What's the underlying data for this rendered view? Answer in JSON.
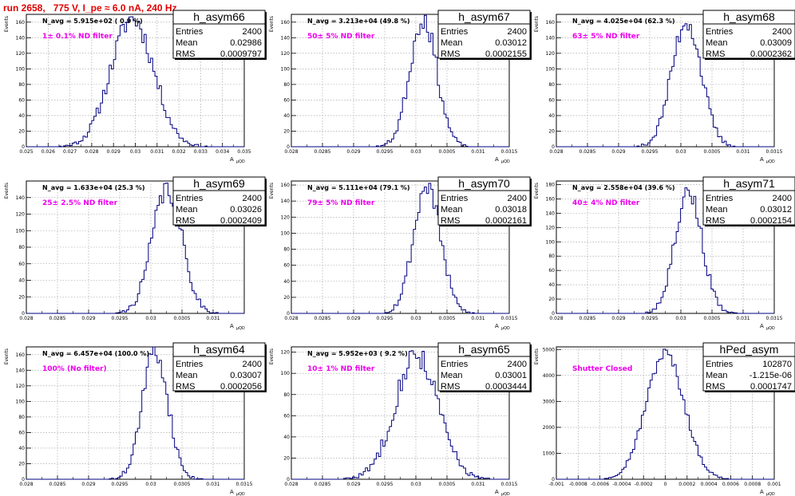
{
  "header": {
    "title": "run 2658,   775 V, I_pe ≈ 6.0 nA, 240 Hz"
  },
  "common": {
    "ylabel": "Events",
    "xlabel": "A",
    "xlabel_sub": "μQD",
    "line_color": "#000080",
    "filter_color": "#ee00ee"
  },
  "stats_labels": {
    "entries": "Entries",
    "mean": "Mean",
    "rms": "RMS"
  },
  "chart_data": [
    {
      "type": "bar",
      "name": "h_asym66",
      "navg": "N_avg = 5.915e+02 ( 0.9 %)",
      "filter": "1± 0.1% ND filter",
      "entries": "2400",
      "mean": "0.02986",
      "rms": "0.0009797",
      "xlim": [
        0.025,
        0.035
      ],
      "ylim": [
        0,
        170
      ],
      "xticks": [
        0.025,
        0.026,
        0.027,
        0.028,
        0.029,
        0.03,
        0.031,
        0.032,
        0.033,
        0.034,
        0.035
      ],
      "xtick_labels": [
        "0.025",
        "0.026",
        "0.027",
        "0.028",
        "0.029",
        "0.03",
        "0.031",
        "0.032",
        "0.033",
        "0.034",
        "0.035"
      ],
      "yticks": [
        0,
        20,
        40,
        60,
        80,
        100,
        120,
        140,
        160
      ],
      "ytick_labels": [
        "0",
        "20",
        "40",
        "60",
        "80",
        "100",
        "120",
        "140",
        "160"
      ],
      "mu": 0.02986,
      "sigma": 0.0009797,
      "nbins": 100,
      "peak": 165,
      "seed": 11
    },
    {
      "type": "bar",
      "name": "h_asym67",
      "navg": "N_avg = 3.213e+04 (49.8 %)",
      "filter": "50± 5% ND filter",
      "entries": "2400",
      "mean": "0.03012",
      "rms": "0.0002155",
      "xlim": [
        0.028,
        0.0315
      ],
      "ylim": [
        0,
        170
      ],
      "xticks": [
        0.028,
        0.0285,
        0.029,
        0.0295,
        0.03,
        0.0305,
        0.031,
        0.0315
      ],
      "xtick_labels": [
        "0.028",
        "0.0285",
        "0.029",
        "0.0295",
        "0.03",
        "0.0305",
        "0.031",
        "0.0315"
      ],
      "yticks": [
        0,
        20,
        40,
        60,
        80,
        100,
        120,
        140,
        160
      ],
      "ytick_labels": [
        "0",
        "20",
        "40",
        "60",
        "80",
        "100",
        "120",
        "140",
        "160"
      ],
      "mu": 0.03012,
      "sigma": 0.0002155,
      "nbins": 100,
      "peak": 165,
      "seed": 23
    },
    {
      "type": "bar",
      "name": "h_asym68",
      "navg": "N_avg = 4.025e+04 (62.3 %)",
      "filter": "63± 5% ND filter",
      "entries": "2400",
      "mean": "0.03009",
      "rms": "0.0002362",
      "xlim": [
        0.028,
        0.0315
      ],
      "ylim": [
        0,
        170
      ],
      "xticks": [
        0.028,
        0.0285,
        0.029,
        0.0295,
        0.03,
        0.0305,
        0.031,
        0.0315
      ],
      "xtick_labels": [
        "0.028",
        "0.0285",
        "0.029",
        "0.0295",
        "0.03",
        "0.0305",
        "0.031",
        "0.0315"
      ],
      "yticks": [
        0,
        20,
        40,
        60,
        80,
        100,
        120,
        140,
        160
      ],
      "ytick_labels": [
        "0",
        "20",
        "40",
        "60",
        "80",
        "100",
        "120",
        "140",
        "160"
      ],
      "mu": 0.03009,
      "sigma": 0.0002362,
      "nbins": 100,
      "peak": 162,
      "seed": 37
    },
    {
      "type": "bar",
      "name": "h_asym69",
      "navg": "N_avg = 1.633e+04 (25.3 %)",
      "filter": "25± 2.5% ND filter",
      "entries": "2400",
      "mean": "0.03026",
      "rms": "0.0002409",
      "xlim": [
        0.028,
        0.0315
      ],
      "ylim": [
        0,
        160
      ],
      "xticks": [
        0.028,
        0.0285,
        0.029,
        0.0295,
        0.03,
        0.0305,
        0.031,
        0.0315
      ],
      "xtick_labels": [
        "0.028",
        "0.0285",
        "0.029",
        "0.0295",
        "0.03",
        "0.0305",
        "0.031",
        ""
      ],
      "yticks": [
        0,
        20,
        40,
        60,
        80,
        100,
        120,
        140
      ],
      "ytick_labels": [
        "0",
        "20",
        "40",
        "60",
        "80",
        "100",
        "120",
        "140"
      ],
      "mu": 0.03026,
      "sigma": 0.0002409,
      "nbins": 100,
      "peak": 150,
      "seed": 41
    },
    {
      "type": "bar",
      "name": "h_asym70",
      "navg": "N_avg = 5.111e+04 (79.1 %)",
      "filter": "79± 5% ND filter",
      "entries": "2400",
      "mean": "0.03018",
      "rms": "0.0002161",
      "xlim": [
        0.028,
        0.0315
      ],
      "ylim": [
        0,
        165
      ],
      "xticks": [
        0.028,
        0.0285,
        0.029,
        0.0295,
        0.03,
        0.0305,
        0.031,
        0.0315
      ],
      "xtick_labels": [
        "0.028",
        "0.0285",
        "0.029",
        "0.0295",
        "0.03",
        "0.0305",
        "0.031",
        "0.0315"
      ],
      "yticks": [
        0,
        20,
        40,
        60,
        80,
        100,
        120,
        140,
        160
      ],
      "ytick_labels": [
        "0",
        "20",
        "40",
        "60",
        "80",
        "100",
        "120",
        "140",
        "160"
      ],
      "mu": 0.03018,
      "sigma": 0.0002161,
      "nbins": 100,
      "peak": 160,
      "seed": 53
    },
    {
      "type": "bar",
      "name": "h_asym71",
      "navg": "N_avg = 2.558e+04 (39.6 %)",
      "filter": "40± 4% ND filter",
      "entries": "2400",
      "mean": "0.03012",
      "rms": "0.0002154",
      "xlim": [
        0.028,
        0.0315
      ],
      "ylim": [
        0,
        185
      ],
      "xticks": [
        0.028,
        0.0285,
        0.029,
        0.0295,
        0.03,
        0.0305,
        0.031,
        0.0315
      ],
      "xtick_labels": [
        "0.028",
        "0.0285",
        "0.029",
        "0.0295",
        "0.03",
        "0.0305",
        "0.031",
        "0.0315"
      ],
      "yticks": [
        0,
        20,
        40,
        60,
        80,
        100,
        120,
        140,
        160,
        180
      ],
      "ytick_labels": [
        "0",
        "20",
        "40",
        "60",
        "80",
        "100",
        "120",
        "140",
        "160",
        "180"
      ],
      "mu": 0.03012,
      "sigma": 0.0002154,
      "nbins": 100,
      "peak": 172,
      "seed": 67
    },
    {
      "type": "bar",
      "name": "h_asym64",
      "navg": "N_avg = 6.457e+04 (100.0 %)",
      "filter": "100% (No filter)",
      "entries": "2400",
      "mean": "0.03007",
      "rms": "0.0002056",
      "xlim": [
        0.028,
        0.0315
      ],
      "ylim": [
        0,
        170
      ],
      "xticks": [
        0.028,
        0.0285,
        0.029,
        0.0295,
        0.03,
        0.0305,
        0.031,
        0.0315
      ],
      "xtick_labels": [
        "0.028",
        "0.0285",
        "0.029",
        "0.0295",
        "0.03",
        "0.0305",
        "0.031",
        "0.0315"
      ],
      "yticks": [
        0,
        20,
        40,
        60,
        80,
        100,
        120,
        140,
        160
      ],
      "ytick_labels": [
        "0",
        "20",
        "40",
        "60",
        "80",
        "100",
        "120",
        "140",
        "160"
      ],
      "mu": 0.03007,
      "sigma": 0.0002056,
      "nbins": 100,
      "peak": 165,
      "seed": 71
    },
    {
      "type": "bar",
      "name": "h_asym65",
      "navg": "N_avg = 5.952e+03 ( 9.2 %)",
      "filter": "10± 1% ND filter",
      "entries": "2400",
      "mean": "0.03001",
      "rms": "0.0003444",
      "xlim": [
        0.028,
        0.0315
      ],
      "ylim": [
        0,
        125
      ],
      "xticks": [
        0.028,
        0.0285,
        0.029,
        0.0295,
        0.03,
        0.0305,
        0.031,
        0.0315
      ],
      "xtick_labels": [
        "0.028",
        "0.0285",
        "0.029",
        "0.0295",
        "0.03",
        "0.0305",
        "0.031",
        "0.0315"
      ],
      "yticks": [
        0,
        20,
        40,
        60,
        80,
        100,
        120
      ],
      "ytick_labels": [
        "0",
        "20",
        "40",
        "60",
        "80",
        "100",
        "120"
      ],
      "mu": 0.03001,
      "sigma": 0.0003444,
      "nbins": 100,
      "peak": 118,
      "seed": 83
    },
    {
      "type": "bar",
      "name": "hPed_asym",
      "navg": "",
      "filter": "Shutter Closed",
      "entries": "102870",
      "mean": "-1.215e-06",
      "rms": "0.0001747",
      "xlim": [
        -0.001,
        0.001
      ],
      "ylim": [
        0,
        5100
      ],
      "xticks": [
        -0.001,
        -0.0008,
        -0.0006,
        -0.0004,
        -0.0002,
        0,
        0.0002,
        0.0004,
        0.0006,
        0.0008,
        0.001
      ],
      "xtick_labels": [
        "-0.001",
        "-0.0008",
        "-0.0006",
        "-0.0004",
        "-0.0002",
        "0",
        "0.0002",
        "0.0004",
        "0.0006",
        "0.0008",
        "0.001"
      ],
      "yticks": [
        0,
        1000,
        2000,
        3000,
        4000,
        5000
      ],
      "ytick_labels": [
        "0",
        "1000",
        "2000",
        "3000",
        "4000",
        "5000"
      ],
      "mu": -1.215e-06,
      "sigma": 0.0001747,
      "nbins": 100,
      "peak": 4850,
      "seed": 97
    }
  ]
}
